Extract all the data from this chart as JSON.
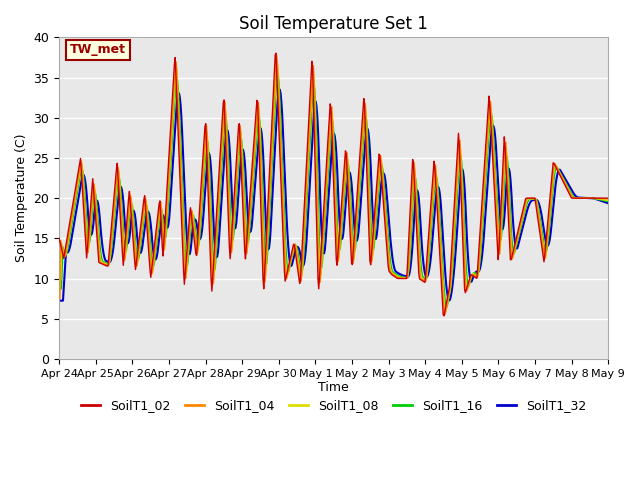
{
  "title": "Soil Temperature Set 1",
  "xlabel": "Time",
  "ylabel": "Soil Temperature (C)",
  "ylim": [
    0,
    40
  ],
  "yticks": [
    0,
    5,
    10,
    15,
    20,
    25,
    30,
    35,
    40
  ],
  "xtick_labels": [
    "Apr 24",
    "Apr 25",
    "Apr 26",
    "Apr 27",
    "Apr 28",
    "Apr 29",
    "Apr 30",
    "May 1",
    "May 2",
    "May 3",
    "May 4",
    "May 5",
    "May 6",
    "May 7",
    "May 8",
    "May 9"
  ],
  "annotation_text": "TW_met",
  "bg_color": "#e8e8e8",
  "grid_color": "white",
  "line_colors": [
    "#cc0000",
    "#ff8800",
    "#dddd00",
    "#00cc00",
    "#0000cc"
  ],
  "line_labels": [
    "SoilT1_02",
    "SoilT1_04",
    "SoilT1_08",
    "SoilT1_16",
    "SoilT1_32"
  ],
  "line_widths": [
    1.0,
    1.0,
    1.0,
    1.0,
    1.5
  ]
}
